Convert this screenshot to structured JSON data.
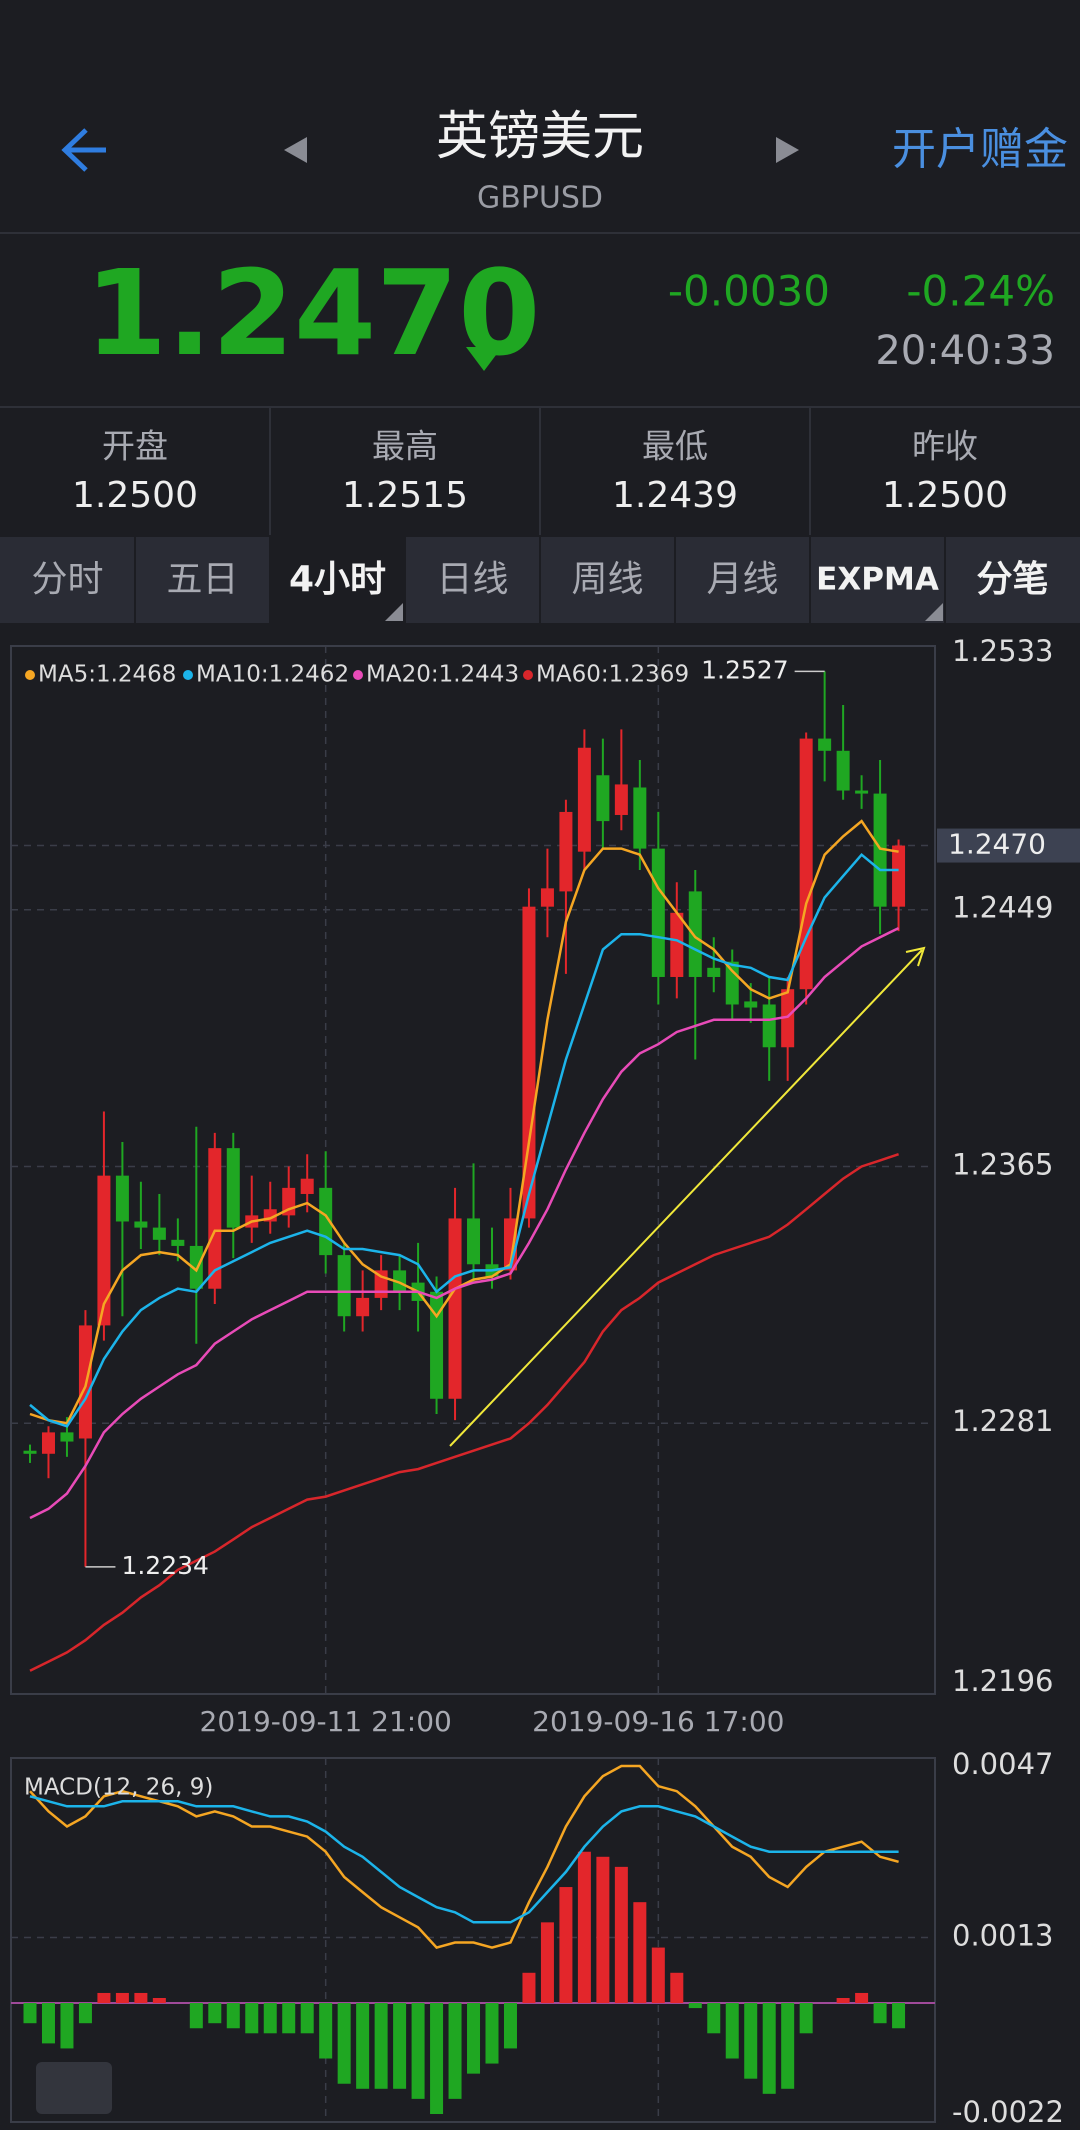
{
  "header": {
    "title": "英镑美元",
    "symbol": "GBPUSD",
    "action": "开户赠金"
  },
  "quote": {
    "price": "1.2470",
    "change": "-0.0030",
    "change_pct": "-0.24%",
    "time": "20:40:33"
  },
  "stats": [
    {
      "label": "开盘",
      "value": "1.2500"
    },
    {
      "label": "最高",
      "value": "1.2515"
    },
    {
      "label": "最低",
      "value": "1.2439"
    },
    {
      "label": "昨收",
      "value": "1.2500"
    }
  ],
  "tabs": {
    "items": [
      "分时",
      "五日",
      "4小时",
      "日线",
      "周线",
      "月线",
      "EXPMA",
      "分笔"
    ],
    "active_tab": 2
  },
  "chart_data": [
    {
      "type": "candlestick",
      "up_color": "#e3262b",
      "down_color": "#1fa722",
      "grid": true,
      "categories": [
        null,
        null,
        null,
        null,
        null,
        null,
        null,
        null,
        null,
        null,
        null,
        null,
        null,
        null,
        null,
        null,
        "2019-09-11 21:00",
        null,
        null,
        null,
        null,
        null,
        null,
        null,
        null,
        null,
        null,
        null,
        null,
        null,
        null,
        null,
        null,
        null,
        "2019-09-16 17:00",
        null,
        null,
        null,
        null,
        null,
        null,
        null,
        null,
        null,
        null,
        null,
        null,
        null
      ],
      "open": [
        1.2272,
        1.2271,
        1.2278,
        1.2276,
        1.2313,
        1.2362,
        1.2347,
        1.2345,
        1.2341,
        1.2339,
        1.2325,
        1.2371,
        1.2345,
        1.2347,
        1.2349,
        1.2356,
        1.2358,
        1.2336,
        1.2316,
        1.2322,
        1.2331,
        1.2327,
        1.2324,
        1.2289,
        1.2348,
        1.2333,
        1.2331,
        1.2348,
        1.245,
        1.2455,
        1.2468,
        1.2493,
        1.248,
        1.2489,
        1.2469,
        1.2427,
        1.2455,
        1.243,
        1.2432,
        1.2419,
        1.2418,
        1.2404,
        1.2423,
        1.2505,
        1.2501,
        1.2488,
        1.2487,
        1.245
      ],
      "high": [
        1.2274,
        1.228,
        1.2283,
        1.2318,
        1.2383,
        1.2373,
        1.236,
        1.2356,
        1.2348,
        1.2378,
        1.2376,
        1.2376,
        1.2362,
        1.236,
        1.2365,
        1.2369,
        1.237,
        1.234,
        1.2331,
        1.2336,
        1.2336,
        1.234,
        1.2329,
        1.2358,
        1.2366,
        1.2345,
        1.2358,
        1.2456,
        1.2469,
        1.2485,
        1.2508,
        1.2505,
        1.2508,
        1.2498,
        1.2481,
        1.2458,
        1.2462,
        1.244,
        1.2436,
        1.2425,
        1.2427,
        1.2427,
        1.2507,
        1.2527,
        1.2516,
        1.2493,
        1.2498,
        1.2472
      ],
      "low": [
        1.2268,
        1.2263,
        1.227,
        1.2234,
        1.2308,
        1.2316,
        1.2338,
        1.2336,
        1.2334,
        1.2307,
        1.232,
        1.2335,
        1.234,
        1.2343,
        1.2345,
        1.235,
        1.233,
        1.2311,
        1.2311,
        1.2318,
        1.2318,
        1.2311,
        1.2284,
        1.2282,
        1.2327,
        1.2325,
        1.2328,
        1.2345,
        1.244,
        1.2428,
        1.2462,
        1.2469,
        1.2475,
        1.2462,
        1.2418,
        1.242,
        1.24,
        1.2422,
        1.2413,
        1.2412,
        1.2393,
        1.2393,
        1.2418,
        1.2491,
        1.2485,
        1.2482,
        1.2441,
        1.2442
      ],
      "close": [
        1.2271,
        1.2278,
        1.2275,
        1.2313,
        1.2362,
        1.2347,
        1.2345,
        1.2341,
        1.2339,
        1.2325,
        1.2371,
        1.2345,
        1.2349,
        1.2351,
        1.2358,
        1.2361,
        1.2336,
        1.2316,
        1.2322,
        1.2331,
        1.2324,
        1.2321,
        1.2289,
        1.2348,
        1.2333,
        1.2329,
        1.2348,
        1.245,
        1.2456,
        1.2481,
        1.2502,
        1.2478,
        1.249,
        1.2469,
        1.2427,
        1.2448,
        1.2427,
        1.2427,
        1.2418,
        1.2417,
        1.2404,
        1.2423,
        1.2505,
        1.2501,
        1.2488,
        1.2487,
        1.245,
        1.247
      ],
      "series": [
        {
          "name": "MA5:1.2468",
          "color": "#f5a623",
          "values": [
            1.2284,
            1.2282,
            1.2281,
            1.2293,
            1.232,
            1.2331,
            1.2336,
            1.2337,
            1.2336,
            1.2331,
            1.2344,
            1.2344,
            1.2347,
            1.2348,
            1.2351,
            1.2353,
            1.2349,
            1.234,
            1.2333,
            1.2329,
            1.2327,
            1.2324,
            1.2316,
            1.2325,
            1.2328,
            1.2329,
            1.2333,
            1.2373,
            1.2413,
            1.2445,
            1.2462,
            1.2469,
            1.2469,
            1.2467,
            1.2456,
            1.2448,
            1.244,
            1.2436,
            1.2429,
            1.2423,
            1.242,
            1.2422,
            1.2451,
            1.2467,
            1.2473,
            1.2478,
            1.2469,
            1.2468
          ]
        },
        {
          "name": "MA10:1.2462",
          "color": "#1cb4ea",
          "values": [
            1.2287,
            1.2282,
            1.228,
            1.2289,
            1.2302,
            1.2311,
            1.2318,
            1.2322,
            1.2325,
            1.2324,
            1.2331,
            1.2334,
            1.2337,
            1.234,
            1.2342,
            1.2344,
            1.2342,
            1.2338,
            1.2338,
            1.2337,
            1.2336,
            1.2333,
            1.2324,
            1.2329,
            1.2331,
            1.2331,
            1.2332,
            1.2356,
            1.2378,
            1.24,
            1.2418,
            1.2436,
            1.2441,
            1.2441,
            1.244,
            1.2439,
            1.2436,
            1.2433,
            1.2431,
            1.243,
            1.2427,
            1.2426,
            1.244,
            1.2453,
            1.246,
            1.2467,
            1.2462,
            1.2462
          ]
        },
        {
          "name": "MA20:1.2443",
          "color": "#e84bb8",
          "values": [
            1.225,
            1.2253,
            1.2258,
            1.2267,
            1.2278,
            1.2284,
            1.2289,
            1.2293,
            1.2297,
            1.23,
            1.2307,
            1.2311,
            1.2315,
            1.2318,
            1.2321,
            1.2324,
            1.2324,
            1.2324,
            1.2324,
            1.2324,
            1.2324,
            1.2324,
            1.2322,
            1.2325,
            1.2327,
            1.2328,
            1.233,
            1.234,
            1.2351,
            1.2364,
            1.2376,
            1.2387,
            1.2396,
            1.2402,
            1.2405,
            1.2409,
            1.2411,
            1.2413,
            1.2413,
            1.2413,
            1.2413,
            1.2414,
            1.242,
            1.2427,
            1.2432,
            1.2437,
            1.244,
            1.2443
          ]
        },
        {
          "name": "MA60:1.2369",
          "color": "#d8262b",
          "values": [
            1.22,
            1.2203,
            1.2206,
            1.221,
            1.2215,
            1.2219,
            1.2224,
            1.2228,
            1.2233,
            1.2236,
            1.2239,
            1.2243,
            1.2247,
            1.225,
            1.2253,
            1.2256,
            1.2257,
            1.2259,
            1.2261,
            1.2263,
            1.2265,
            1.2266,
            1.2268,
            1.227,
            1.2272,
            1.2274,
            1.2276,
            1.2281,
            1.2287,
            1.2294,
            1.2301,
            1.2311,
            1.2318,
            1.2322,
            1.2327,
            1.233,
            1.2333,
            1.2336,
            1.2338,
            1.234,
            1.2342,
            1.2346,
            1.2351,
            1.2356,
            1.2361,
            1.2365,
            1.2367,
            1.2369
          ]
        }
      ],
      "ylim": [
        1.2196,
        1.2533
      ],
      "yticks": [
        1.2533,
        1.2449,
        1.2365,
        1.2281,
        1.2196
      ],
      "last": {
        "value": 1.247,
        "label": "1.2470"
      },
      "annotations": [
        1.2527,
        1.2234
      ]
    },
    {
      "type": "macd",
      "title": "MACD(12, 26, 9)",
      "up_color": "#e3262b",
      "down_color": "#1fa722",
      "values": [
        -0.0004,
        -0.0008,
        -0.0009,
        -0.0004,
        0.0002,
        0.0002,
        0.0002,
        0.0001,
        0,
        -0.0005,
        -0.0004,
        -0.0005,
        -0.0006,
        -0.0006,
        -0.0006,
        -0.0006,
        -0.0011,
        -0.0016,
        -0.0017,
        -0.0017,
        -0.0017,
        -0.0019,
        -0.0022,
        -0.0019,
        -0.0014,
        -0.0012,
        -0.0009,
        0.0006,
        0.0016,
        0.0023,
        0.003,
        0.0029,
        0.0027,
        0.002,
        0.0011,
        0.0006,
        -0.0001,
        -0.0006,
        -0.0011,
        -0.0015,
        -0.0018,
        -0.0017,
        -0.0006,
        0,
        0.0001,
        0.0002,
        -0.0004,
        -0.0005
      ],
      "series": [
        {
          "color": "#f5a623",
          "values": [
            0.0042,
            0.0038,
            0.0035,
            0.0037,
            0.0041,
            0.0042,
            0.0041,
            0.004,
            0.0039,
            0.0037,
            0.0038,
            0.0037,
            0.0035,
            0.0035,
            0.0034,
            0.0033,
            0.003,
            0.0025,
            0.0022,
            0.0019,
            0.0017,
            0.0015,
            0.0011,
            0.0012,
            0.0012,
            0.0011,
            0.0012,
            0.002,
            0.0027,
            0.0035,
            0.0041,
            0.0045,
            0.0047,
            0.0047,
            0.0043,
            0.0042,
            0.0039,
            0.0035,
            0.0031,
            0.0029,
            0.0025,
            0.0023,
            0.0027,
            0.003,
            0.0031,
            0.0032,
            0.0029,
            0.0028
          ]
        },
        {
          "color": "#1cb4ea",
          "values": [
            0.0041,
            0.004,
            0.0039,
            0.0039,
            0.0039,
            0.004,
            0.004,
            0.004,
            0.004,
            0.0039,
            0.0039,
            0.0039,
            0.0038,
            0.0037,
            0.0037,
            0.0036,
            0.0034,
            0.0031,
            0.0029,
            0.0026,
            0.0023,
            0.0021,
            0.0019,
            0.0018,
            0.0016,
            0.0016,
            0.0016,
            0.0018,
            0.0022,
            0.0026,
            0.0031,
            0.0035,
            0.0038,
            0.0039,
            0.0039,
            0.0038,
            0.0037,
            0.0035,
            0.0033,
            0.0031,
            0.003,
            0.003,
            0.003,
            0.003,
            0.003,
            0.003,
            0.003,
            0.003
          ]
        }
      ],
      "ylim": [
        -0.0022,
        0.0047
      ],
      "yticks": [
        0.0047,
        0.0013,
        -0.0022
      ],
      "grid": true
    }
  ]
}
